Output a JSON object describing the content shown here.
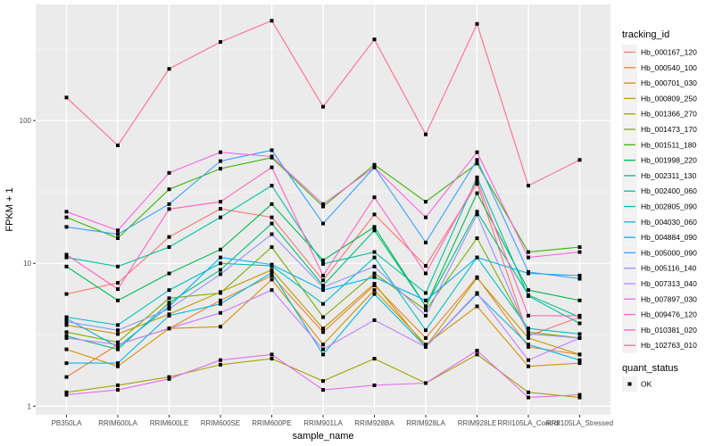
{
  "chart_data": {
    "type": "line",
    "title": "",
    "xlabel": "sample_name",
    "ylabel": "FPKM + 1",
    "y_scale": "log10",
    "ylim": [
      0.87,
      650
    ],
    "y_ticks": [
      1,
      10,
      100
    ],
    "y_tick_labels": [
      "1",
      "10",
      "100"
    ],
    "grid": true,
    "legend_position": "right",
    "categories": [
      "PB350LA",
      "RRIM600LA",
      "RRIM600LE",
      "RRIM600SE",
      "RRIM600PE",
      "RRIM901LA",
      "RRIM928BA",
      "RRIM928LA",
      "RRIM928LE",
      "RRII105LA_Control",
      "RRII105LA_Stressed"
    ],
    "series": [
      {
        "name": "Hb_000167_120",
        "color": "#F8766D",
        "values": [
          6.1,
          7.3,
          15.3,
          24.1,
          21.0,
          7.6,
          22.0,
          9.6,
          36.0,
          3.1,
          4.2
        ]
      },
      {
        "name": "Hb_000540_100",
        "color": "#EA8331",
        "values": [
          1.6,
          2.7,
          3.5,
          5.5,
          8.2,
          3.3,
          7.0,
          3.0,
          8.0,
          2.6,
          2.3
        ]
      },
      {
        "name": "Hb_000701_030",
        "color": "#D89000",
        "values": [
          2.5,
          1.9,
          3.5,
          3.6,
          7.7,
          2.7,
          6.5,
          2.7,
          5.0,
          1.9,
          2.0
        ]
      },
      {
        "name": "Hb_000809_250",
        "color": "#C09B00",
        "values": [
          3.7,
          3.2,
          4.4,
          6.3,
          9.0,
          3.5,
          7.2,
          2.6,
          7.9,
          3.0,
          2.3
        ]
      },
      {
        "name": "Hb_001366_270",
        "color": "#A3A500",
        "values": [
          1.25,
          1.4,
          1.6,
          1.95,
          2.15,
          1.5,
          2.15,
          1.45,
          2.3,
          1.25,
          1.15
        ]
      },
      {
        "name": "Hb_001473_170",
        "color": "#7CAE00",
        "values": [
          3.3,
          2.8,
          5.7,
          6.2,
          13.0,
          4.2,
          8.5,
          4.7,
          15.0,
          3.3,
          3.0
        ]
      },
      {
        "name": "Hb_001511_180",
        "color": "#39B600",
        "values": [
          21.0,
          15.0,
          33.0,
          46.0,
          55.0,
          25.0,
          49.0,
          27.0,
          50.0,
          12.0,
          13.0
        ]
      },
      {
        "name": "Hb_001998_220",
        "color": "#00BB4E",
        "values": [
          9.5,
          5.5,
          8.5,
          12.5,
          26.0,
          10.5,
          18.0,
          5.0,
          31.0,
          6.5,
          5.5
        ]
      },
      {
        "name": "Hb_002311_130",
        "color": "#00BF7D",
        "values": [
          3.1,
          2.5,
          5.3,
          9.0,
          19.0,
          7.0,
          17.0,
          5.0,
          23.0,
          6.0,
          4.2
        ]
      },
      {
        "name": "Hb_002400_060",
        "color": "#00C1A3",
        "values": [
          11.0,
          9.5,
          13.0,
          21.0,
          35.0,
          9.9,
          12.0,
          6.2,
          40.0,
          5.9,
          3.8
        ]
      },
      {
        "name": "Hb_002805_090",
        "color": "#00BFC4",
        "values": [
          4.2,
          3.7,
          6.5,
          10.0,
          9.6,
          5.2,
          11.0,
          3.4,
          11.0,
          3.5,
          3.2
        ]
      },
      {
        "name": "Hb_004030_060",
        "color": "#00BAE0",
        "values": [
          2.0,
          2.0,
          4.3,
          5.2,
          8.6,
          2.3,
          6.1,
          2.6,
          6.1,
          2.7,
          2.1
        ]
      },
      {
        "name": "Hb_004884_090",
        "color": "#00B0F6",
        "values": [
          4.1,
          2.6,
          5.0,
          11.0,
          9.8,
          6.5,
          8.0,
          5.5,
          11.0,
          8.5,
          8.2
        ]
      },
      {
        "name": "Hb_005000_090",
        "color": "#35A2FF",
        "values": [
          18.0,
          16.0,
          26.0,
          52.0,
          62.0,
          19.0,
          47.0,
          14.0,
          53.0,
          8.7,
          7.8
        ]
      },
      {
        "name": "Hb_005116_140",
        "color": "#9590FF",
        "values": [
          3.9,
          3.4,
          4.8,
          8.4,
          16.0,
          6.8,
          9.5,
          4.3,
          22.0,
          3.2,
          3.0
        ]
      },
      {
        "name": "Hb_007313_040",
        "color": "#C77CFF",
        "values": [
          3.0,
          2.7,
          3.5,
          4.5,
          6.5,
          2.5,
          4.0,
          2.6,
          6.2,
          2.1,
          3.0
        ]
      },
      {
        "name": "Hb_007897_030",
        "color": "#E76BF3",
        "values": [
          1.2,
          1.3,
          1.55,
          2.1,
          2.3,
          1.3,
          1.4,
          1.45,
          2.45,
          1.15,
          1.2
        ]
      },
      {
        "name": "Hb_009476_120",
        "color": "#FA62DB",
        "values": [
          23.0,
          17.0,
          43.0,
          60.0,
          56.0,
          26.0,
          47.0,
          21.0,
          60.0,
          11.0,
          12.0
        ]
      },
      {
        "name": "Hb_010381_020",
        "color": "#FF62BC",
        "values": [
          11.5,
          6.6,
          24.0,
          27.0,
          47.0,
          8.2,
          29.0,
          8.5,
          38.0,
          4.3,
          4.3
        ]
      },
      {
        "name": "Hb_102763_010",
        "color": "#FF6C90",
        "values": [
          145.0,
          67.0,
          230.0,
          355.0,
          500.0,
          125.0,
          370.0,
          80.0,
          475.0,
          35.0,
          53.0
        ]
      }
    ],
    "point_legend": {
      "title": "quant_status",
      "items": [
        {
          "label": "OK",
          "color": "#000000"
        }
      ]
    }
  },
  "legend": {
    "title": "tracking_id",
    "shape_title": "quant_status",
    "shape_label": "OK"
  }
}
